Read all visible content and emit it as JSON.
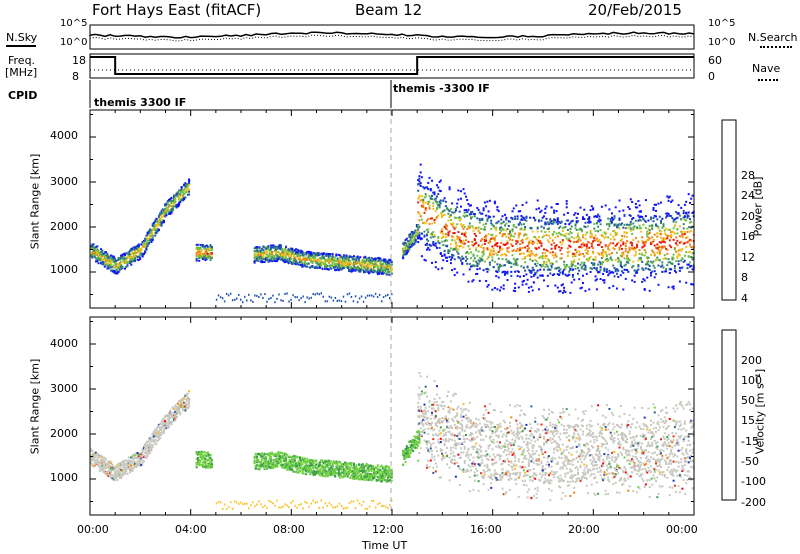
{
  "header": {
    "station": "Fort Hays East (fitACF)",
    "beam": "Beam 12",
    "date": "20/Feb/2015"
  },
  "panels": {
    "nsky_label": "N.Sky",
    "nsearch_label": "N.Search",
    "freq_label_line1": "Freq.",
    "freq_label_line2": "[MHz]",
    "nave_label": "Nave",
    "cpid_label": "CPID",
    "top_left_ticks": [
      "10^5",
      "10^0"
    ],
    "top_right_ticks": [
      "10^5",
      "10^0"
    ],
    "freq_ticks": [
      "18",
      "8"
    ],
    "nave_ticks": [
      "60",
      "0"
    ]
  },
  "cpid_segments": [
    {
      "label": "themis 3300 IF",
      "start_hour": 0
    },
    {
      "label": "themis -3300 IF",
      "start_hour": 12
    }
  ],
  "axes": {
    "y_label": "Slant Range [km]",
    "y_ticks": [
      "1000",
      "2000",
      "3000",
      "4000"
    ],
    "x_label": "Time UT",
    "x_ticks": [
      "00:00",
      "04:00",
      "08:00",
      "12:00",
      "16:00",
      "20:00",
      "00:00"
    ]
  },
  "colorbars": {
    "power": {
      "label": "Power [dB]",
      "ticks": [
        "4",
        "8",
        "12",
        "16",
        "20",
        "24",
        "28"
      ],
      "colors": [
        "#1010ff",
        "#2050b0",
        "#3a8a6a",
        "#70c040",
        "#f0c020",
        "#f08010",
        "#e02010",
        "#ff0000"
      ]
    },
    "velocity": {
      "label": "Velocity [m s⁻¹]",
      "ticks": [
        "200",
        "100",
        "50",
        "15",
        "-15",
        "-50",
        "-100",
        "-200"
      ],
      "colors": [
        "#1530c0",
        "#2a6090",
        "#3a9a50",
        "#70d040",
        "#c8c8c0",
        "#f8c020",
        "#f08010",
        "#e03010",
        "#ff0000"
      ]
    }
  },
  "chart_data": [
    {
      "type": "heatmap",
      "title": "",
      "xlabel": "Time UT",
      "ylabel": "Slant Range [km]",
      "quantity": "Power [dB]",
      "xlim_hours": [
        0,
        24
      ],
      "ylim_km": [
        200,
        4600
      ],
      "grid": false,
      "bands": [
        {
          "x": [
            0,
            1,
            2,
            3,
            3.9
          ],
          "y": [
            1500,
            1150,
            1500,
            2400,
            2900
          ],
          "value": 14
        },
        {
          "x": [
            4.2,
            4.8
          ],
          "y": [
            1450,
            1450
          ],
          "value": 18
        },
        {
          "x": [
            6.5,
            7.5,
            8.5,
            9.5,
            10.5,
            11.5,
            12
          ],
          "y": [
            1400,
            1450,
            1300,
            1250,
            1200,
            1150,
            1100
          ],
          "value": 14
        },
        {
          "x": [
            12.4,
            13.1
          ],
          "y": [
            1500,
            2000
          ],
          "value": 12
        },
        {
          "x": [
            13,
            14,
            15,
            16,
            17,
            18,
            19,
            20,
            21,
            22,
            23,
            24
          ],
          "y": [
            2200,
            1800,
            1550,
            1400,
            1400,
            1350,
            1350,
            1400,
            1400,
            1400,
            1450,
            1500
          ],
          "value": 20
        }
      ]
    },
    {
      "type": "heatmap",
      "title": "",
      "xlabel": "Time UT",
      "ylabel": "Slant Range [km]",
      "quantity": "Velocity [m s-1]",
      "xlim_hours": [
        0,
        24
      ],
      "ylim_km": [
        200,
        4600
      ],
      "grid": false,
      "bands": [
        {
          "x": [
            0,
            1,
            2,
            3,
            3.9
          ],
          "y": [
            1500,
            1150,
            1500,
            2300,
            2800
          ],
          "value": 0
        },
        {
          "x": [
            4.2,
            4.8
          ],
          "y": [
            1450,
            1450
          ],
          "value": 40
        },
        {
          "x": [
            6.5,
            7.5,
            8.5,
            9.5,
            10.5,
            11.5,
            12
          ],
          "y": [
            1400,
            1450,
            1300,
            1250,
            1200,
            1150,
            1100
          ],
          "value": 30
        },
        {
          "x": [
            12.4,
            13.1
          ],
          "y": [
            1500,
            2000
          ],
          "value": 40
        },
        {
          "x": [
            13,
            14,
            15,
            16,
            17,
            18,
            19,
            20,
            21,
            22,
            23,
            24
          ],
          "y": [
            2200,
            1800,
            1550,
            1400,
            1400,
            1350,
            1350,
            1400,
            1400,
            1400,
            1450,
            1500
          ],
          "value": 0
        }
      ]
    }
  ]
}
